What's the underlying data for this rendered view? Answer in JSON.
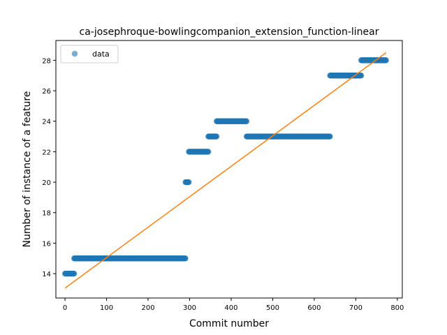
{
  "chart_data": {
    "type": "scatter",
    "title": "ca-josephroque-bowlingcompanion_extension_function-linear",
    "xlabel": "Commit number",
    "ylabel": "Number of instance of a feature",
    "xlim": [
      -22,
      812
    ],
    "ylim": [
      12.4,
      29.3
    ],
    "xticks": [
      0,
      100,
      200,
      300,
      400,
      500,
      600,
      700,
      800
    ],
    "yticks": [
      14,
      16,
      18,
      20,
      22,
      24,
      26,
      28
    ],
    "legend": {
      "placement": "top-left",
      "entries": [
        "data"
      ]
    },
    "colors": {
      "data": "#1f77b4",
      "fit": "#ff7f0e"
    },
    "series": [
      {
        "name": "data",
        "kind": "scatter",
        "segments": [
          {
            "x_start": 0,
            "x_end": 22,
            "y": 14
          },
          {
            "x_start": 22,
            "x_end": 290,
            "y": 15
          },
          {
            "x_start": 290,
            "x_end": 298,
            "y": 20
          },
          {
            "x_start": 298,
            "x_end": 345,
            "y": 22
          },
          {
            "x_start": 345,
            "x_end": 365,
            "y": 23
          },
          {
            "x_start": 365,
            "x_end": 437,
            "y": 24
          },
          {
            "x_start": 437,
            "x_end": 638,
            "y": 23
          },
          {
            "x_start": 638,
            "x_end": 713,
            "y": 27
          },
          {
            "x_start": 713,
            "x_end": 773,
            "y": 28
          }
        ]
      },
      {
        "kind": "line",
        "points": [
          [
            0,
            13.05
          ],
          [
            773,
            28.5
          ]
        ]
      }
    ]
  }
}
